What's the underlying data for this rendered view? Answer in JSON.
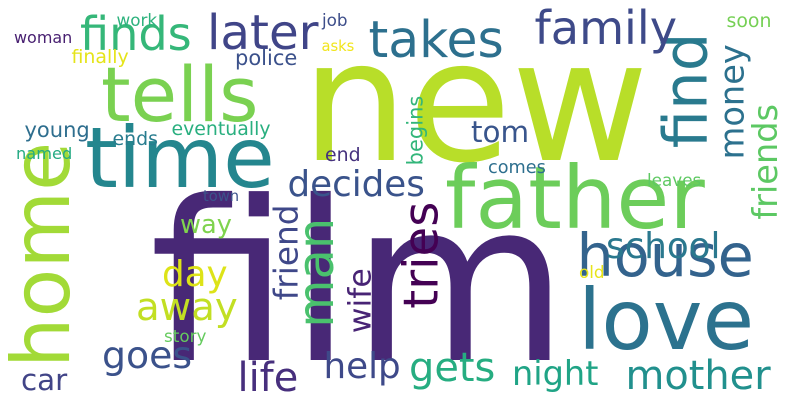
{
  "cloud": {
    "words": [
      {
        "text": "film",
        "color": "#482876",
        "vertical": false
      },
      {
        "text": "new",
        "color": "#b8de29",
        "vertical": false
      },
      {
        "text": "father",
        "color": "#6ccd5a",
        "vertical": false
      },
      {
        "text": "time",
        "color": "#24868e",
        "vertical": false
      },
      {
        "text": "tells",
        "color": "#7ad151",
        "vertical": false
      },
      {
        "text": "home",
        "color": "#a2da37",
        "vertical": true
      },
      {
        "text": "love",
        "color": "#2c728e",
        "vertical": false
      },
      {
        "text": "house",
        "color": "#33638d",
        "vertical": false
      },
      {
        "text": "man",
        "color": "#4ac16d",
        "vertical": true
      },
      {
        "text": "find",
        "color": "#297a8e",
        "vertical": true
      },
      {
        "text": "family",
        "color": "#3e4a89",
        "vertical": false
      },
      {
        "text": "takes",
        "color": "#2d708e",
        "vertical": false
      },
      {
        "text": "later",
        "color": "#404588",
        "vertical": false
      },
      {
        "text": "finds",
        "color": "#35b779",
        "vertical": false
      },
      {
        "text": "tries",
        "color": "#440154",
        "vertical": true
      },
      {
        "text": "mother",
        "color": "#21908d",
        "vertical": false
      },
      {
        "text": "school",
        "color": "#2a788e",
        "vertical": false
      },
      {
        "text": "away",
        "color": "#c2df23",
        "vertical": false
      },
      {
        "text": "goes",
        "color": "#3b528b",
        "vertical": false
      },
      {
        "text": "gets",
        "color": "#26ad81",
        "vertical": false
      },
      {
        "text": "life",
        "color": "#472f7d",
        "vertical": false
      },
      {
        "text": "night",
        "color": "#20a486",
        "vertical": false
      },
      {
        "text": "help",
        "color": "#3e4989",
        "vertical": false
      },
      {
        "text": "day",
        "color": "#dde318",
        "vertical": false
      },
      {
        "text": "friend",
        "color": "#3f4889",
        "vertical": true
      },
      {
        "text": "wife",
        "color": "#482475",
        "vertical": true
      },
      {
        "text": "decides",
        "color": "#3a538b",
        "vertical": false
      },
      {
        "text": "tom",
        "color": "#39558c",
        "vertical": false
      },
      {
        "text": "money",
        "color": "#2c718e",
        "vertical": true
      },
      {
        "text": "friends",
        "color": "#5cc863",
        "vertical": true
      },
      {
        "text": "way",
        "color": "#7fd34e",
        "vertical": false
      },
      {
        "text": "car",
        "color": "#414487",
        "vertical": false
      },
      {
        "text": "police",
        "color": "#3b518b",
        "vertical": false
      },
      {
        "text": "young",
        "color": "#2e6e8e",
        "vertical": false
      },
      {
        "text": "finally",
        "color": "#e5e419",
        "vertical": false
      },
      {
        "text": "ends",
        "color": "#287c8e",
        "vertical": false
      },
      {
        "text": "eventually",
        "color": "#29af7f",
        "vertical": false
      },
      {
        "text": "named",
        "color": "#24aa83",
        "vertical": false
      },
      {
        "text": "end",
        "color": "#46327e",
        "vertical": false
      },
      {
        "text": "comes",
        "color": "#2e6f8e",
        "vertical": false
      },
      {
        "text": "begins",
        "color": "#32b67a",
        "vertical": true
      },
      {
        "text": "town",
        "color": "#3b528b",
        "vertical": false
      },
      {
        "text": "story",
        "color": "#65cb5e",
        "vertical": false
      },
      {
        "text": "old",
        "color": "#e7e419",
        "vertical": false
      },
      {
        "text": "leaves",
        "color": "#5ec962",
        "vertical": false
      },
      {
        "text": "woman",
        "color": "#482071",
        "vertical": false
      },
      {
        "text": "work",
        "color": "#2db27d",
        "vertical": false
      },
      {
        "text": "job",
        "color": "#3d4e8a",
        "vertical": false
      },
      {
        "text": "asks",
        "color": "#f1e51d",
        "vertical": false
      },
      {
        "text": "soon",
        "color": "#75d054",
        "vertical": false
      }
    ]
  }
}
